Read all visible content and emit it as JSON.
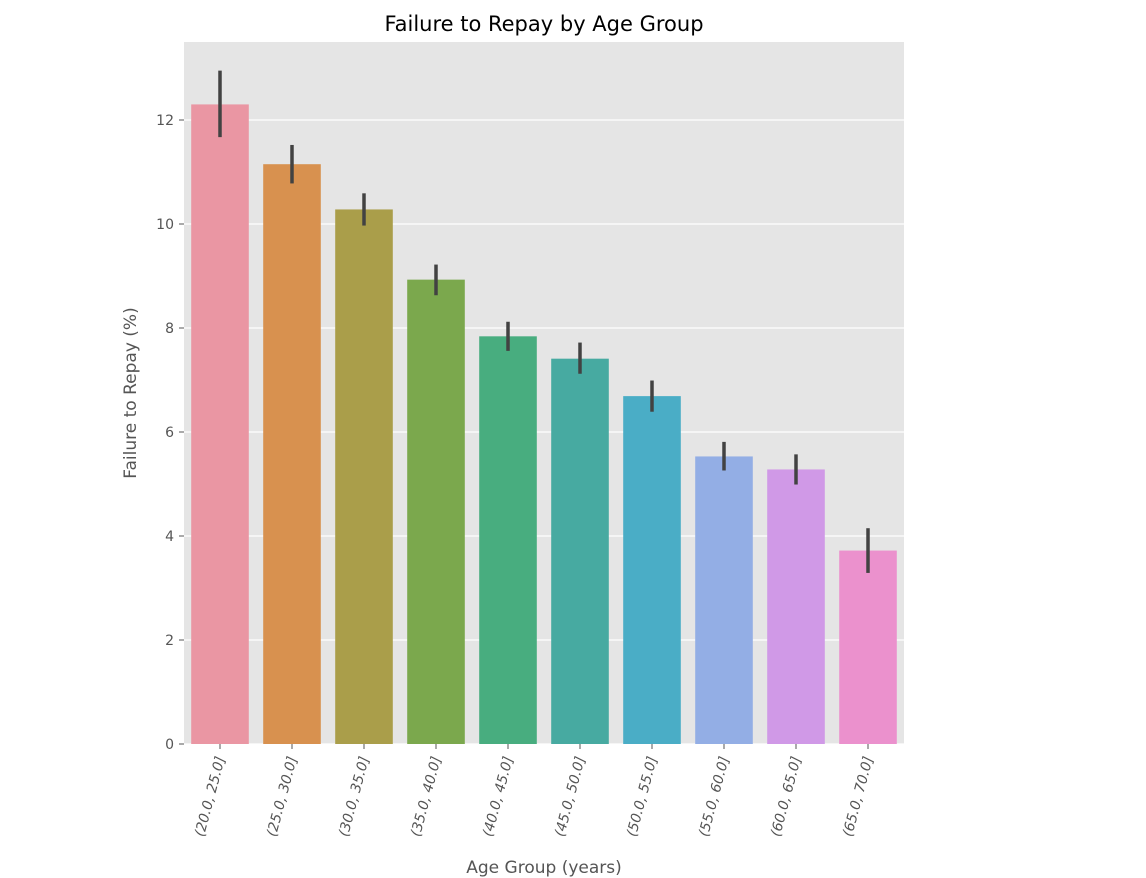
{
  "chart_data": {
    "type": "bar",
    "title": "Failure to Repay by Age Group",
    "xlabel": "Age Group (years)",
    "ylabel": "Failure to Repay (%)",
    "ylim": [
      0,
      13.5
    ],
    "yticks": [
      0,
      2,
      4,
      6,
      8,
      10,
      12
    ],
    "grid": true,
    "categories": [
      "(20.0, 25.0]",
      "(25.0, 30.0]",
      "(30.0, 35.0]",
      "(35.0, 40.0]",
      "(40.0, 45.0]",
      "(45.0, 50.0]",
      "(50.0, 55.0]",
      "(55.0, 60.0]",
      "(60.0, 65.0]",
      "(65.0, 70.0]"
    ],
    "values": [
      12.3,
      11.15,
      10.28,
      8.93,
      7.84,
      7.41,
      6.69,
      5.53,
      5.28,
      3.72
    ],
    "errors": [
      [
        11.67,
        12.95
      ],
      [
        10.78,
        11.52
      ],
      [
        9.97,
        10.59
      ],
      [
        8.63,
        9.22
      ],
      [
        7.56,
        8.12
      ],
      [
        7.12,
        7.72
      ],
      [
        6.39,
        6.99
      ],
      [
        5.26,
        5.81
      ],
      [
        4.99,
        5.57
      ],
      [
        3.29,
        4.15
      ]
    ],
    "colors": [
      "#ea96a3",
      "#d8914f",
      "#aa9e4a",
      "#7ba84d",
      "#48ad7f",
      "#47aaa1",
      "#4aadc6",
      "#93aee5",
      "#d099e7",
      "#eb91cd"
    ]
  }
}
